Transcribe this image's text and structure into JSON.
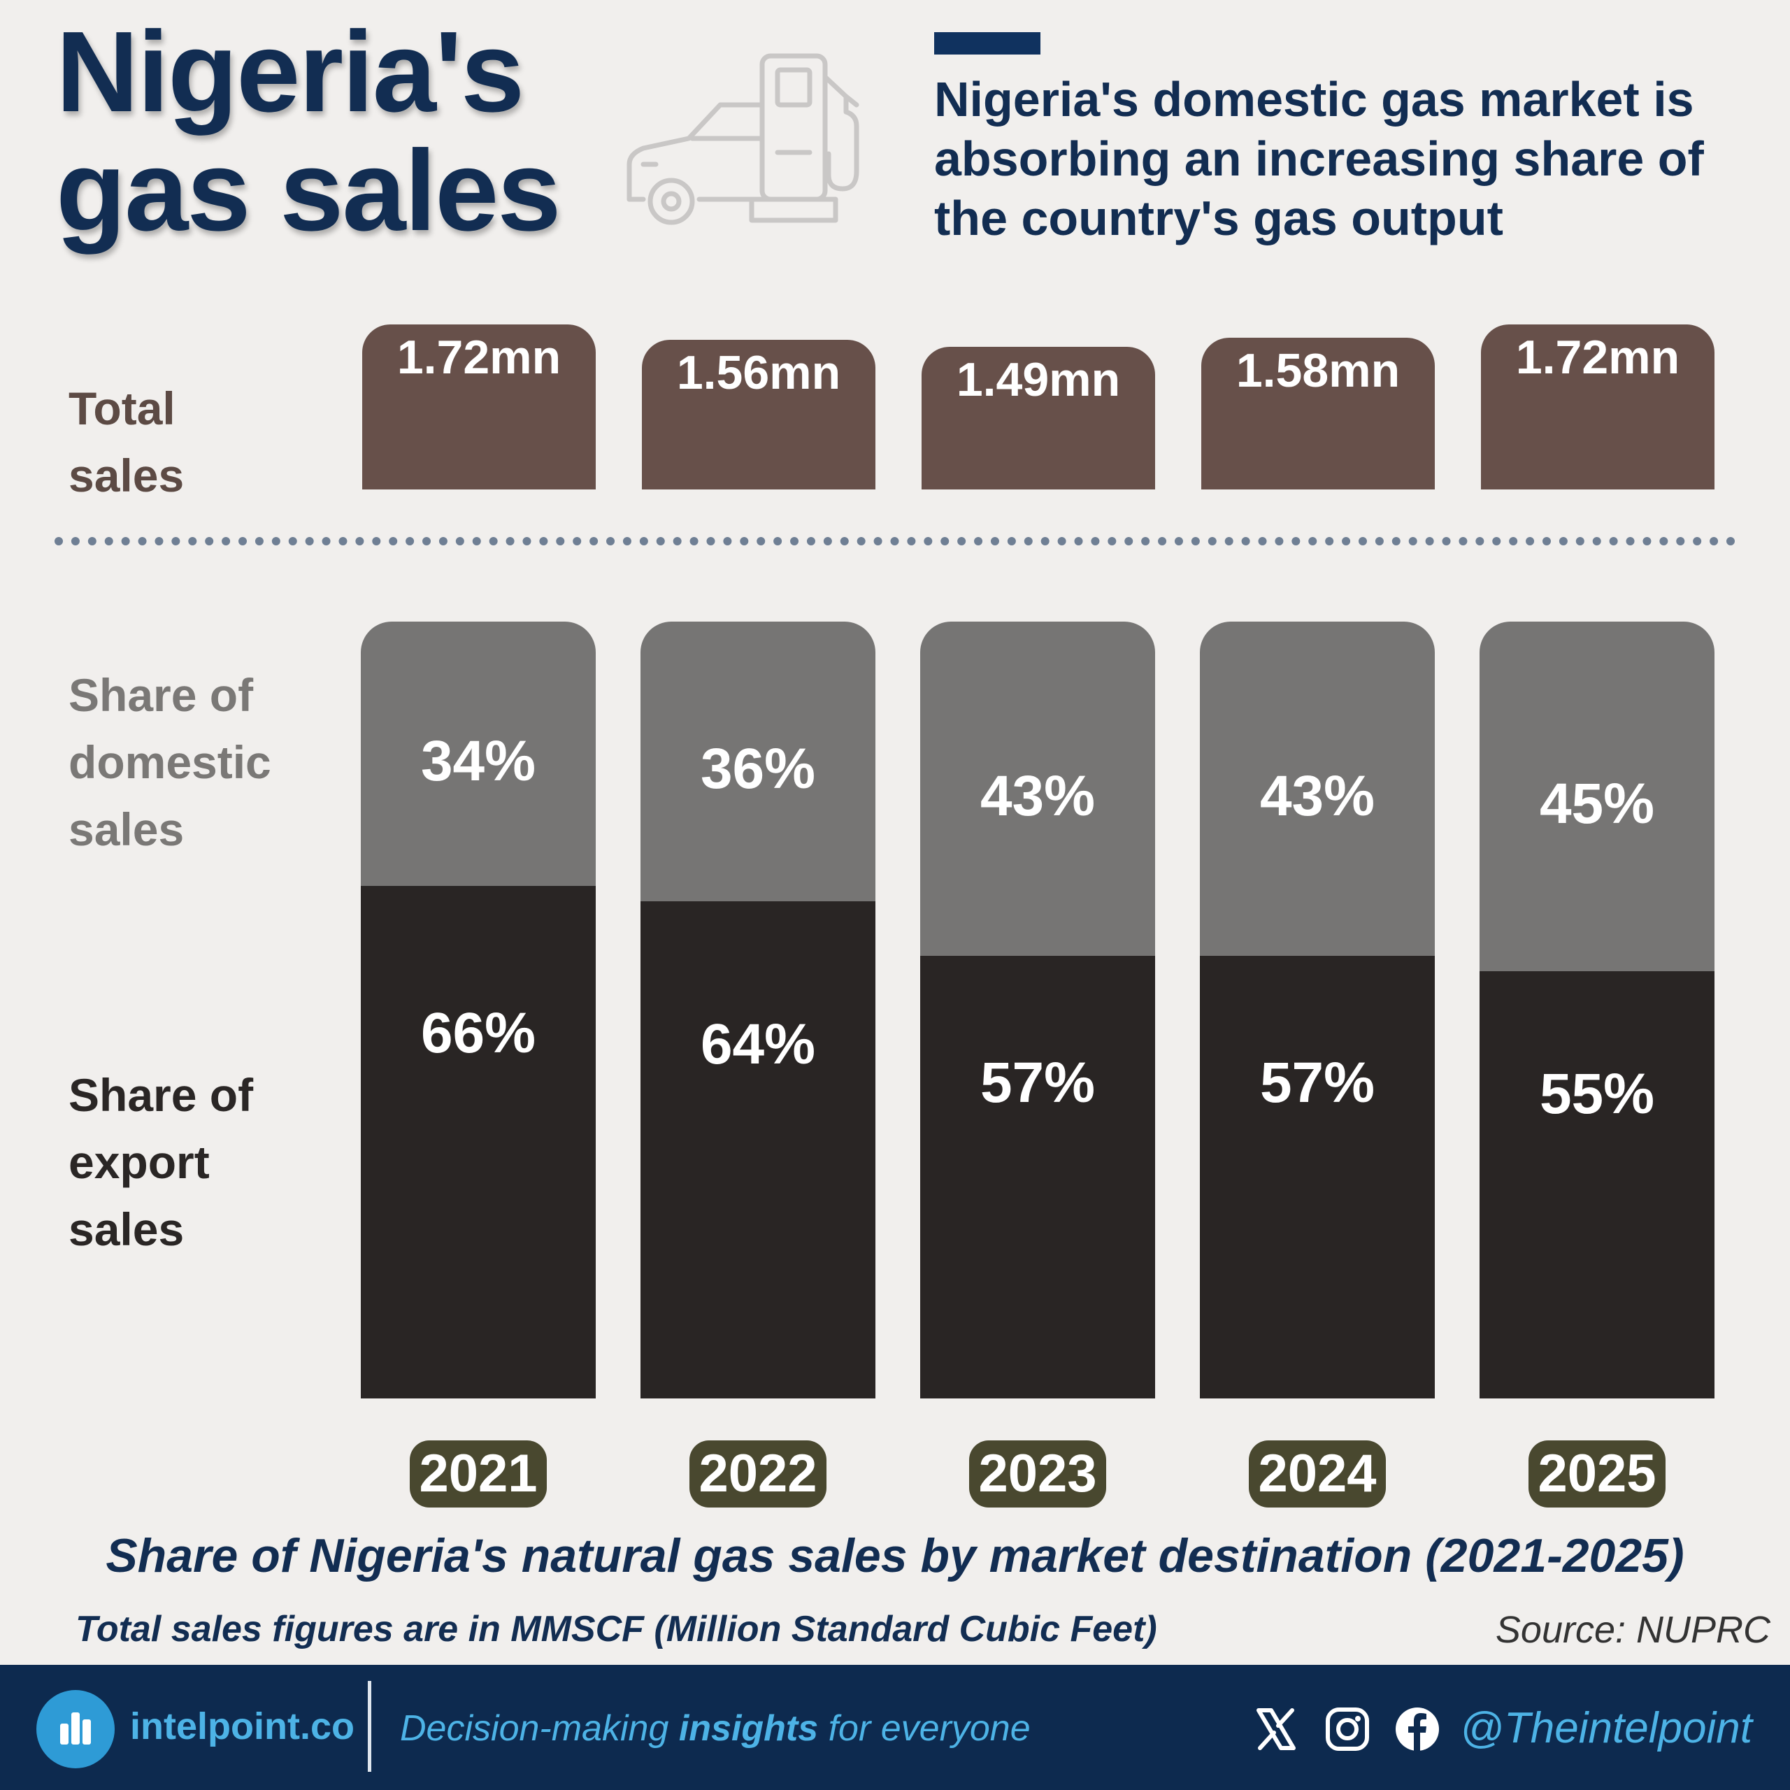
{
  "header": {
    "title_line1": "Nigeria's",
    "title_line2": "gas sales",
    "subtitle": "Nigeria's domestic gas market is absorbing an increasing share of the country's gas output",
    "icon": "fuel-pump-car-icon"
  },
  "row_labels": {
    "total": [
      "Total",
      "sales"
    ],
    "domestic": [
      "Share of",
      "domestic",
      "sales"
    ],
    "export": [
      "Share of",
      "export",
      "sales"
    ]
  },
  "chart_data": {
    "type": "bar",
    "title": "Share of Nigeria's natural gas sales by market destination (2021-2025)",
    "categories": [
      "2021",
      "2022",
      "2023",
      "2024",
      "2025"
    ],
    "totals": {
      "name": "Total sales",
      "unit": "MMSCF (Million Standard Cubic Feet)",
      "values": [
        1.72,
        1.56,
        1.49,
        1.58,
        1.72
      ],
      "labels": [
        "1.72mn",
        "1.56mn",
        "1.49mn",
        "1.58mn",
        "1.72mn"
      ]
    },
    "series": [
      {
        "name": "Share of domestic sales",
        "values": [
          34,
          36,
          43,
          43,
          45
        ],
        "labels": [
          "34%",
          "36%",
          "43%",
          "43%",
          "45%"
        ],
        "color": "#767574"
      },
      {
        "name": "Share of export sales",
        "values": [
          66,
          64,
          57,
          57,
          55
        ],
        "labels": [
          "66%",
          "64%",
          "57%",
          "57%",
          "55%"
        ],
        "color": "#292524"
      }
    ],
    "stacked": true,
    "ylim": [
      0,
      100
    ],
    "total_color": "#67504a"
  },
  "caption": "Share of Nigeria's natural gas sales by market destination (2021-2025)",
  "unit_note": "Total sales figures are in MMSCF (Million Standard Cubic Feet)",
  "source": "Source: NUPRC",
  "footer": {
    "brand": "intelpoint.co",
    "tagline_pre": "Decision-making ",
    "tagline_bold": "insights",
    "tagline_post": " for everyone",
    "handle": "@Theintelpoint",
    "socials": [
      "x-icon",
      "instagram-icon",
      "facebook-icon"
    ]
  },
  "colors": {
    "navy": "#122d52",
    "footer_bg": "#0d2a4f",
    "accent_blue": "#4db3e6",
    "year_badge": "#49482f"
  }
}
